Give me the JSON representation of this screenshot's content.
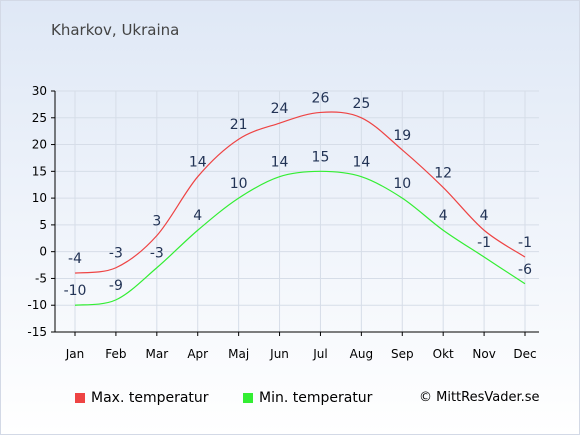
{
  "colors": {
    "max": "#ee4444",
    "min": "#33ee33",
    "label": "#223355",
    "grid": "#d6dde8",
    "axis": "#000000"
  },
  "legend": {
    "max_label": "Max. temperatur",
    "min_label": "Min. temperatur"
  },
  "copyright": "© MittResVader.se",
  "chart_data": {
    "type": "line",
    "title": "Kharkov, Ukraina",
    "xlabel": "",
    "ylabel": "",
    "categories": [
      "Jan",
      "Feb",
      "Mar",
      "Apr",
      "Maj",
      "Jun",
      "Jul",
      "Aug",
      "Sep",
      "Okt",
      "Nov",
      "Dec"
    ],
    "yticks": [
      30,
      25,
      20,
      15,
      10,
      5,
      0,
      -5,
      -10,
      -15
    ],
    "ylim": [
      -15,
      30
    ],
    "grid": true,
    "legend_position": "bottom",
    "series": [
      {
        "name": "Max. temperatur",
        "values": [
          -4,
          -3,
          3,
          14,
          21,
          24,
          26,
          25,
          19,
          12,
          4,
          -1
        ]
      },
      {
        "name": "Min. temperatur",
        "values": [
          -10,
          -9,
          -3,
          4,
          10,
          14,
          15,
          14,
          10,
          4,
          -1,
          -6
        ]
      }
    ]
  }
}
